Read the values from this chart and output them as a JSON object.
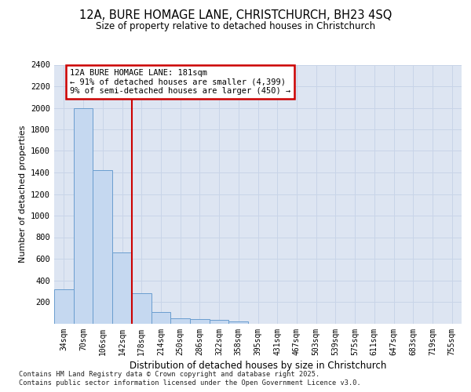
{
  "title_line1": "12A, BURE HOMAGE LANE, CHRISTCHURCH, BH23 4SQ",
  "title_line2": "Size of property relative to detached houses in Christchurch",
  "xlabel": "Distribution of detached houses by size in Christchurch",
  "ylabel": "Number of detached properties",
  "categories": [
    "34sqm",
    "70sqm",
    "106sqm",
    "142sqm",
    "178sqm",
    "214sqm",
    "250sqm",
    "286sqm",
    "322sqm",
    "358sqm",
    "395sqm",
    "431sqm",
    "467sqm",
    "503sqm",
    "539sqm",
    "575sqm",
    "611sqm",
    "647sqm",
    "683sqm",
    "719sqm",
    "755sqm"
  ],
  "bar_values": [
    320,
    2000,
    1420,
    660,
    280,
    105,
    50,
    40,
    35,
    20,
    0,
    0,
    0,
    0,
    0,
    0,
    0,
    0,
    0,
    0,
    0
  ],
  "bar_color": "#c5d8f0",
  "bar_edge_color": "#6a9ecf",
  "vline_x_index": 3.5,
  "vline_color": "#cc0000",
  "annotation_text": "12A BURE HOMAGE LANE: 181sqm\n← 91% of detached houses are smaller (4,399)\n9% of semi-detached houses are larger (450) →",
  "annotation_box_color": "#cc0000",
  "ylim": [
    0,
    2400
  ],
  "yticks": [
    0,
    200,
    400,
    600,
    800,
    1000,
    1200,
    1400,
    1600,
    1800,
    2000,
    2200,
    2400
  ],
  "grid_color": "#c8d4e8",
  "background_color": "#dde5f2",
  "footer_line1": "Contains HM Land Registry data © Crown copyright and database right 2025.",
  "footer_line2": "Contains public sector information licensed under the Open Government Licence v3.0."
}
